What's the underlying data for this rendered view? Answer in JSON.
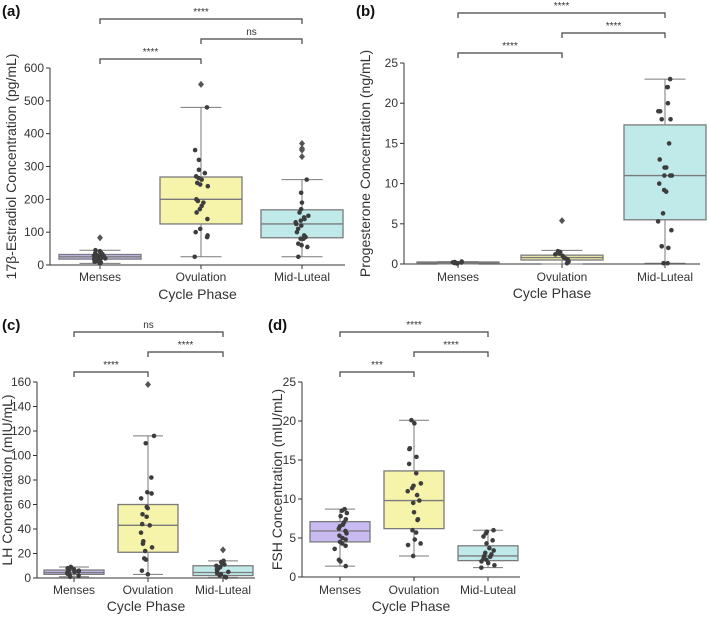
{
  "colors": {
    "Menses": "#c9baf2",
    "Ovulation": "#f6f3aa",
    "Mid-Luteal": "#c0eaea",
    "box_edge": "#7a7a7a",
    "point": "#3d3d3d"
  },
  "chart_data": [
    {
      "panel_label": "(a)",
      "type": "box",
      "xlabel": "Cycle Phase",
      "ylabel": "17β-Estradiol Concentration (pg/mL)",
      "categories": [
        "Menses",
        "Ovulation",
        "Mid-Luteal"
      ],
      "ylim": [
        0,
        600
      ],
      "yticks": [
        0,
        100,
        200,
        300,
        400,
        500,
        600
      ],
      "boxes": [
        {
          "q1": 18,
          "median": 25,
          "q3": 32,
          "whisker_low": 5,
          "whisker_high": 45,
          "outliers": [
            83
          ],
          "points": [
            5,
            8,
            10,
            12,
            15,
            17,
            18,
            20,
            22,
            23,
            25,
            26,
            27,
            28,
            30,
            31,
            33,
            35,
            38,
            42,
            45
          ]
        },
        {
          "q1": 125,
          "median": 200,
          "q3": 268,
          "whisker_low": 25,
          "whisker_high": 480,
          "outliers": [
            550
          ],
          "points": [
            25,
            85,
            90,
            100,
            110,
            140,
            160,
            170,
            180,
            190,
            195,
            200,
            240,
            245,
            250,
            260,
            265,
            270,
            280,
            290,
            320,
            350,
            480
          ]
        },
        {
          "q1": 83,
          "median": 125,
          "q3": 168,
          "whisker_low": 25,
          "whisker_high": 260,
          "outliers": [
            330,
            350,
            355,
            370
          ],
          "points": [
            25,
            55,
            60,
            65,
            80,
            80,
            85,
            90,
            100,
            110,
            120,
            125,
            130,
            135,
            140,
            145,
            150,
            160,
            170,
            190,
            220,
            260
          ]
        }
      ],
      "comparisons": [
        {
          "groups": [
            "Menses",
            "Mid-Luteal"
          ],
          "label": "****"
        },
        {
          "groups": [
            "Ovulation",
            "Mid-Luteal"
          ],
          "label": "ns"
        },
        {
          "groups": [
            "Menses",
            "Ovulation"
          ],
          "label": "****"
        }
      ]
    },
    {
      "panel_label": "(b)",
      "type": "box",
      "xlabel": "Cycle Phase",
      "ylabel": "Progesterone Concentration (ng/mL)",
      "categories": [
        "Menses",
        "Ovulation",
        "Mid-Luteal"
      ],
      "ylim": [
        0,
        25
      ],
      "yticks": [
        0,
        5,
        10,
        15,
        20,
        25
      ],
      "boxes": [
        {
          "q1": 0.1,
          "median": 0.15,
          "q3": 0.25,
          "whisker_low": 0,
          "whisker_high": 0.3,
          "outliers": [],
          "points": [
            0.05,
            0.1,
            0.12,
            0.15,
            0.18,
            0.2,
            0.25,
            0.3
          ]
        },
        {
          "q1": 0.5,
          "median": 0.8,
          "q3": 1.1,
          "whisker_low": 0,
          "whisker_high": 1.7,
          "outliers": [
            5.4
          ],
          "points": [
            0.1,
            0.3,
            0.5,
            0.6,
            0.7,
            0.8,
            1.0,
            1.2,
            1.3,
            1.5,
            1.6
          ]
        },
        {
          "q1": 5.5,
          "median": 11,
          "q3": 17.3,
          "whisker_low": 0.1,
          "whisker_high": 23,
          "outliers": [],
          "points": [
            0.1,
            0.1,
            2,
            2.2,
            4.2,
            5.3,
            6.3,
            9,
            9.2,
            10,
            11,
            11,
            11,
            12,
            12,
            13,
            15,
            18,
            18,
            19,
            19,
            20,
            22,
            22,
            23
          ]
        }
      ],
      "comparisons": [
        {
          "groups": [
            "Menses",
            "Mid-Luteal"
          ],
          "label": "****"
        },
        {
          "groups": [
            "Ovulation",
            "Mid-Luteal"
          ],
          "label": "****"
        },
        {
          "groups": [
            "Menses",
            "Ovulation"
          ],
          "label": "****"
        }
      ]
    },
    {
      "panel_label": "(c)",
      "type": "box",
      "xlabel": "Cycle Phase",
      "ylabel": "LH Concentration (mIU/mL)",
      "categories": [
        "Menses",
        "Ovulation",
        "Mid-Luteal"
      ],
      "ylim": [
        0,
        160
      ],
      "yticks": [
        0,
        20,
        40,
        60,
        80,
        100,
        120,
        140,
        160
      ],
      "boxes": [
        {
          "q1": 3,
          "median": 4.5,
          "q3": 6.5,
          "whisker_low": 1,
          "whisker_high": 9,
          "outliers": [],
          "points": [
            1,
            2,
            3,
            3.5,
            4,
            4.5,
            5,
            5.5,
            6,
            6.5,
            7,
            8,
            9
          ]
        },
        {
          "q1": 21,
          "median": 43,
          "q3": 60,
          "whisker_low": 3,
          "whisker_high": 116,
          "outliers": [
            158
          ],
          "points": [
            3,
            6,
            15,
            16,
            22,
            25,
            28,
            30,
            37,
            43,
            44,
            50,
            52,
            57,
            58,
            65,
            69,
            70,
            82,
            110,
            116
          ]
        },
        {
          "q1": 2,
          "median": 4.5,
          "q3": 10,
          "whisker_low": 0.5,
          "whisker_high": 14,
          "outliers": [
            23
          ],
          "points": [
            0.5,
            1,
            2,
            3,
            4,
            5,
            6,
            7,
            8,
            9,
            10,
            11,
            12,
            13,
            14
          ]
        }
      ],
      "comparisons": [
        {
          "groups": [
            "Menses",
            "Mid-Luteal"
          ],
          "label": "ns"
        },
        {
          "groups": [
            "Ovulation",
            "Mid-Luteal"
          ],
          "label": "****"
        },
        {
          "groups": [
            "Menses",
            "Ovulation"
          ],
          "label": "****"
        }
      ]
    },
    {
      "panel_label": "(d)",
      "type": "box",
      "xlabel": "Cycle Phase",
      "ylabel": "FSH Concentration (mIU/mL)",
      "categories": [
        "Menses",
        "Ovulation",
        "Mid-Luteal"
      ],
      "ylim": [
        0,
        25
      ],
      "yticks": [
        0,
        5,
        10,
        15,
        20,
        25
      ],
      "boxes": [
        {
          "q1": 4.5,
          "median": 5.9,
          "q3": 7.1,
          "whisker_low": 1.4,
          "whisker_high": 8.7,
          "outliers": [],
          "points": [
            1.4,
            2,
            2.2,
            3.6,
            4,
            4.3,
            4.5,
            4.8,
            5,
            5.3,
            5.6,
            5.9,
            6.2,
            6.5,
            6.7,
            7,
            7.4,
            7.8,
            8.2,
            8.5,
            8.7
          ]
        },
        {
          "q1": 6.2,
          "median": 9.8,
          "q3": 13.6,
          "whisker_low": 2.7,
          "whisker_high": 20.1,
          "outliers": [],
          "points": [
            2.7,
            4.1,
            4.3,
            4.8,
            5.7,
            6,
            7.3,
            7.4,
            8.3,
            9.5,
            9.8,
            10.5,
            11,
            11.4,
            11.7,
            12,
            13.3,
            14.5,
            15.4,
            16.4,
            16.5,
            19.7,
            20.1
          ]
        },
        {
          "q1": 2.1,
          "median": 2.7,
          "q3": 4,
          "whisker_low": 1.2,
          "whisker_high": 6,
          "outliers": [],
          "points": [
            1.2,
            1.5,
            1.8,
            2,
            2.2,
            2.4,
            2.6,
            2.7,
            2.9,
            3.1,
            3.4,
            3.7,
            4.3,
            4.7,
            5.2,
            5.6,
            5.8,
            6
          ]
        }
      ],
      "comparisons": [
        {
          "groups": [
            "Menses",
            "Mid-Luteal"
          ],
          "label": "****"
        },
        {
          "groups": [
            "Ovulation",
            "Mid-Luteal"
          ],
          "label": "****"
        },
        {
          "groups": [
            "Menses",
            "Ovulation"
          ],
          "label": "***"
        }
      ]
    }
  ]
}
